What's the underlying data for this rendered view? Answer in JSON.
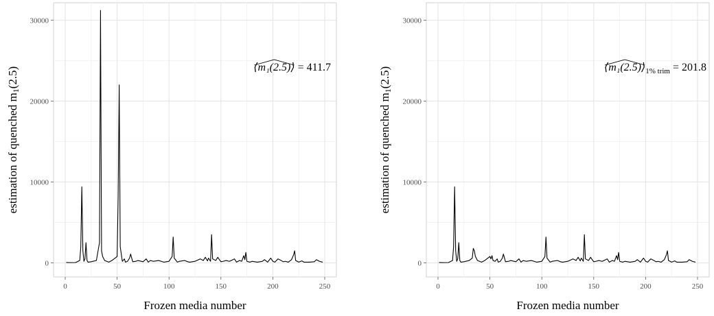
{
  "chart_data": [
    {
      "type": "line",
      "xlabel": "Frozen media number",
      "ylabel_main": "estimation of quenched m",
      "ylabel_sub": "1",
      "ylabel_tail": "(2.5)",
      "xlim": [
        0,
        250
      ],
      "ylim": [
        0,
        32000
      ],
      "xticks": [
        0,
        50,
        100,
        150,
        200,
        250
      ],
      "yticks": [
        0,
        10000,
        20000,
        30000
      ],
      "grid": true,
      "annotation": {
        "lhs": "⟨m₁(2.5)⟩",
        "rhs": "= 411.7",
        "position": "top-right"
      },
      "series": [
        {
          "x": [
            1,
            5,
            10,
            14,
            15,
            16,
            17,
            18,
            19,
            20,
            21,
            22,
            25,
            30,
            33,
            34,
            35,
            36,
            38,
            40,
            42,
            45,
            48,
            50,
            51,
            52,
            53,
            55,
            57,
            58,
            60,
            62,
            63,
            65,
            68,
            70,
            75,
            78,
            80,
            82,
            85,
            90,
            95,
            100,
            103,
            104,
            105,
            108,
            110,
            115,
            118,
            120,
            125,
            130,
            133,
            135,
            137,
            138,
            140,
            141,
            142,
            145,
            147,
            148,
            150,
            152,
            155,
            158,
            160,
            163,
            165,
            168,
            170,
            172,
            173,
            174,
            175,
            178,
            180,
            185,
            190,
            192,
            195,
            198,
            200,
            202,
            205,
            208,
            210,
            212,
            215,
            218,
            220,
            221,
            222,
            225,
            228,
            230,
            235,
            240,
            242,
            245,
            248
          ],
          "y": [
            60,
            40,
            50,
            300,
            2000,
            9400,
            1500,
            200,
            500,
            2500,
            300,
            100,
            150,
            300,
            2500,
            31200,
            1500,
            800,
            300,
            200,
            100,
            300,
            600,
            800,
            8000,
            22000,
            2000,
            200,
            500,
            100,
            200,
            600,
            1100,
            150,
            200,
            300,
            150,
            500,
            100,
            300,
            200,
            300,
            100,
            200,
            800,
            3200,
            600,
            100,
            200,
            300,
            150,
            100,
            200,
            500,
            300,
            700,
            250,
            600,
            200,
            3500,
            500,
            300,
            700,
            500,
            150,
            200,
            300,
            200,
            300,
            500,
            100,
            300,
            200,
            900,
            400,
            1300,
            200,
            100,
            200,
            100,
            200,
            400,
            100,
            600,
            200,
            100,
            500,
            300,
            150,
            200,
            100,
            400,
            1000,
            1500,
            300,
            100,
            250,
            100,
            100,
            150,
            400,
            200,
            100
          ]
        }
      ]
    },
    {
      "type": "line",
      "xlabel": "Frozen media number",
      "ylabel_main": "estimation of quenched m",
      "ylabel_sub": "1",
      "ylabel_tail": "(2.5)",
      "xlim": [
        0,
        250
      ],
      "ylim": [
        0,
        32000
      ],
      "xticks": [
        0,
        50,
        100,
        150,
        200,
        250
      ],
      "yticks": [
        0,
        10000,
        20000,
        30000
      ],
      "grid": true,
      "annotation": {
        "lhs": "⟨m₁(2.5)⟩",
        "sub": "1% trim",
        "rhs": "= 201.8",
        "position": "top-right"
      },
      "series": [
        {
          "x": [
            1,
            5,
            10,
            14,
            15,
            16,
            17,
            18,
            19,
            20,
            21,
            22,
            25,
            30,
            33,
            34,
            35,
            36,
            38,
            40,
            42,
            45,
            48,
            50,
            51,
            52,
            53,
            55,
            57,
            58,
            60,
            62,
            63,
            65,
            68,
            70,
            75,
            78,
            80,
            82,
            85,
            90,
            95,
            100,
            103,
            104,
            105,
            108,
            110,
            115,
            118,
            120,
            125,
            130,
            133,
            135,
            137,
            138,
            140,
            141,
            142,
            145,
            147,
            148,
            150,
            152,
            155,
            158,
            160,
            163,
            165,
            168,
            170,
            172,
            173,
            174,
            175,
            178,
            180,
            185,
            190,
            192,
            195,
            198,
            200,
            202,
            205,
            208,
            210,
            212,
            215,
            218,
            220,
            221,
            222,
            225,
            228,
            230,
            235,
            240,
            242,
            245,
            248
          ],
          "y": [
            60,
            40,
            50,
            300,
            2000,
            9400,
            1500,
            200,
            500,
            2500,
            300,
            100,
            150,
            300,
            600,
            1800,
            1500,
            800,
            300,
            200,
            100,
            300,
            600,
            800,
            500,
            900,
            300,
            200,
            500,
            100,
            200,
            600,
            1100,
            150,
            200,
            300,
            150,
            500,
            100,
            300,
            200,
            300,
            100,
            200,
            800,
            3200,
            600,
            100,
            200,
            300,
            150,
            100,
            200,
            500,
            300,
            700,
            250,
            600,
            200,
            3500,
            500,
            300,
            700,
            500,
            150,
            200,
            300,
            200,
            300,
            500,
            100,
            300,
            200,
            900,
            400,
            1300,
            200,
            100,
            200,
            100,
            200,
            400,
            100,
            600,
            200,
            100,
            500,
            300,
            150,
            200,
            100,
            400,
            1000,
            1500,
            300,
            100,
            250,
            100,
            100,
            150,
            400,
            200,
            100
          ]
        }
      ]
    }
  ]
}
